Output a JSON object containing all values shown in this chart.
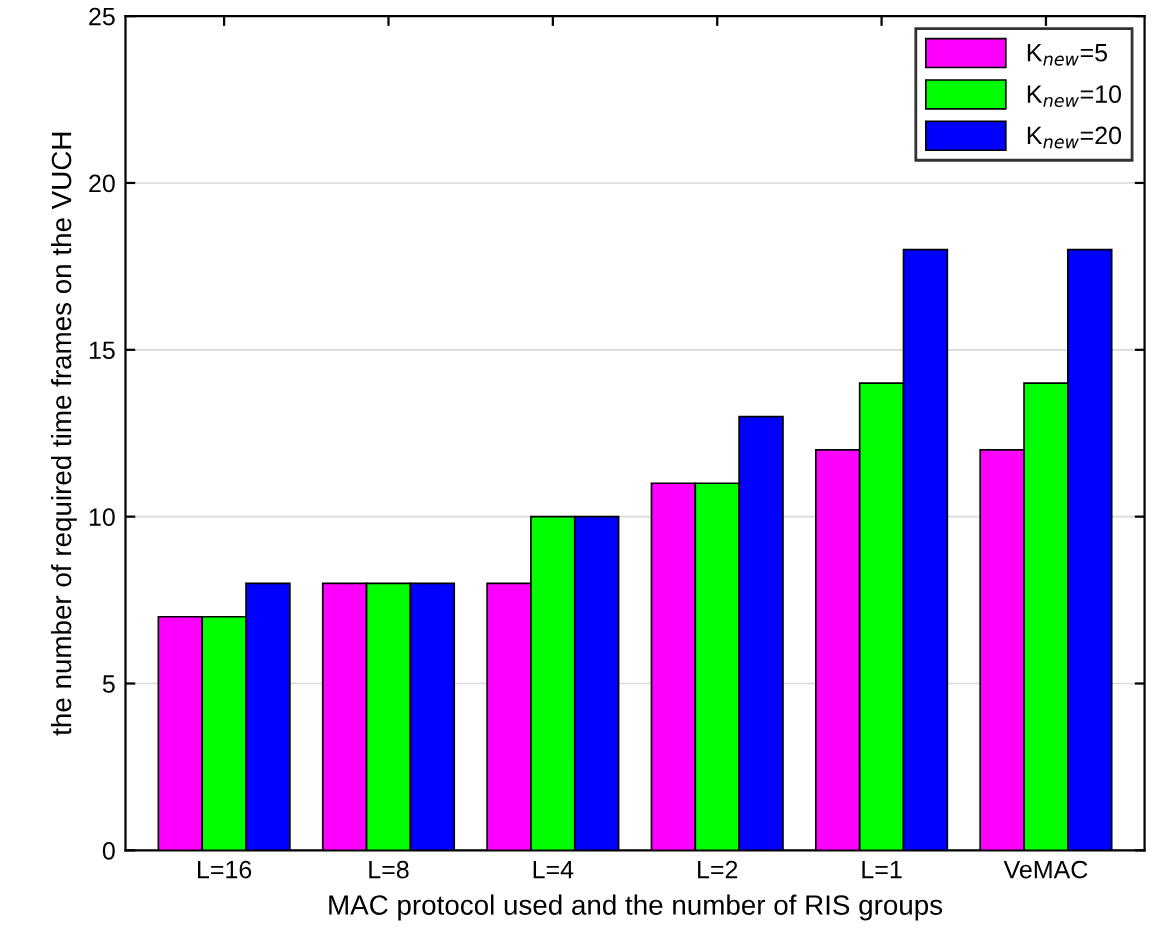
{
  "chart_data": {
    "type": "bar",
    "xlabel": "MAC protocol used and the number of RIS groups",
    "ylabel": "the number of required time frames on the VUCH",
    "categories": [
      "L=16",
      "L=8",
      "L=4",
      "L=2",
      "L=1",
      "VeMAC"
    ],
    "series": [
      {
        "name": "K$_{new}$=5",
        "color": "#ff00ff",
        "values": [
          7,
          8,
          8,
          11,
          12,
          12
        ]
      },
      {
        "name": "K$_{new}$=10",
        "color": "#00ff00",
        "values": [
          7,
          8,
          10,
          11,
          14,
          14
        ]
      },
      {
        "name": "K$_{new}$=20",
        "color": "#0000ff",
        "values": [
          8,
          8,
          10,
          13,
          18,
          18
        ]
      }
    ],
    "ylim": [
      0,
      25
    ],
    "yticks": [
      0,
      5,
      10,
      15,
      20,
      25
    ],
    "grid": "y",
    "legend": "top right"
  }
}
